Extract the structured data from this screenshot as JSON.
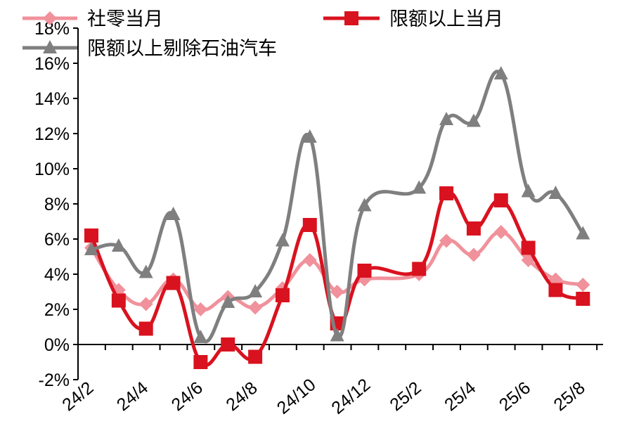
{
  "chart_data": {
    "type": "line",
    "title": "",
    "xlabel": "",
    "ylabel": "",
    "ylim": [
      -2,
      18
    ],
    "y_ticks": [
      "-2%",
      "0%",
      "2%",
      "4%",
      "6%",
      "8%",
      "10%",
      "12%",
      "14%",
      "16%",
      "18%"
    ],
    "x_tick_labels": [
      "24/2",
      "24/4",
      "24/6",
      "24/8",
      "24/10",
      "24/12",
      "25/2",
      "25/4",
      "25/6",
      "25/8"
    ],
    "grid": false,
    "legend_position": "top",
    "series": [
      {
        "name": "社零当月",
        "color": "#F0919B",
        "marker": "diamond",
        "points": [
          {
            "x": "24/2",
            "y": 5.5
          },
          {
            "x": "24/3",
            "y": 3.1
          },
          {
            "x": "24/4",
            "y": 2.3
          },
          {
            "x": "24/5",
            "y": 3.7
          },
          {
            "x": "24/6",
            "y": 2.0
          },
          {
            "x": "24/7",
            "y": 2.7
          },
          {
            "x": "24/8",
            "y": 2.1
          },
          {
            "x": "24/9",
            "y": 3.2
          },
          {
            "x": "24/10",
            "y": 4.8
          },
          {
            "x": "24/11",
            "y": 3.0
          },
          {
            "x": "24/12",
            "y": 3.7
          },
          {
            "x": "25/2",
            "y": 4.0
          },
          {
            "x": "25/3",
            "y": 5.9
          },
          {
            "x": "25/4",
            "y": 5.1
          },
          {
            "x": "25/5",
            "y": 6.4
          },
          {
            "x": "25/6",
            "y": 4.8
          },
          {
            "x": "25/7",
            "y": 3.7
          },
          {
            "x": "25/8",
            "y": 3.4
          }
        ]
      },
      {
        "name": "限额以上当月",
        "color": "#D9121F",
        "marker": "square",
        "points": [
          {
            "x": "24/2",
            "y": 6.2
          },
          {
            "x": "24/3",
            "y": 2.5
          },
          {
            "x": "24/4",
            "y": 0.9
          },
          {
            "x": "24/5",
            "y": 3.5
          },
          {
            "x": "24/6",
            "y": -1.0
          },
          {
            "x": "24/7",
            "y": 0.0
          },
          {
            "x": "24/8",
            "y": -0.7
          },
          {
            "x": "24/9",
            "y": 2.8
          },
          {
            "x": "24/10",
            "y": 6.8
          },
          {
            "x": "24/11",
            "y": 1.2
          },
          {
            "x": "24/12",
            "y": 4.2
          },
          {
            "x": "25/2",
            "y": 4.3
          },
          {
            "x": "25/3",
            "y": 8.6
          },
          {
            "x": "25/4",
            "y": 6.6
          },
          {
            "x": "25/5",
            "y": 8.2
          },
          {
            "x": "25/6",
            "y": 5.5
          },
          {
            "x": "25/7",
            "y": 3.1
          },
          {
            "x": "25/8",
            "y": 2.6
          }
        ]
      },
      {
        "name": "限额以上剔除石油汽车",
        "color": "#7F7F7F",
        "marker": "triangle",
        "points": [
          {
            "x": "24/2",
            "y": 5.4
          },
          {
            "x": "24/3",
            "y": 5.6
          },
          {
            "x": "24/4",
            "y": 4.1
          },
          {
            "x": "24/5",
            "y": 7.4
          },
          {
            "x": "24/6",
            "y": 0.4
          },
          {
            "x": "24/7",
            "y": 2.4
          },
          {
            "x": "24/8",
            "y": 3.0
          },
          {
            "x": "24/9",
            "y": 5.9
          },
          {
            "x": "24/10",
            "y": 11.8
          },
          {
            "x": "24/11",
            "y": 0.5
          },
          {
            "x": "24/12",
            "y": 7.9
          },
          {
            "x": "25/2",
            "y": 8.9
          },
          {
            "x": "25/3",
            "y": 12.8
          },
          {
            "x": "25/4",
            "y": 12.7
          },
          {
            "x": "25/5",
            "y": 15.4
          },
          {
            "x": "25/6",
            "y": 8.7
          },
          {
            "x": "25/7",
            "y": 8.6
          },
          {
            "x": "25/8",
            "y": 6.3
          }
        ]
      }
    ]
  }
}
